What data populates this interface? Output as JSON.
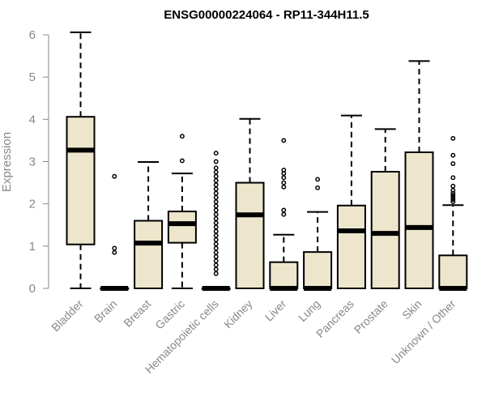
{
  "chart_data": {
    "type": "box",
    "title": "ENSG00000224064 - RP11-344H11.5",
    "ylabel": "Expression",
    "ylim": [
      0,
      6
    ],
    "yticks": [
      0,
      1,
      2,
      3,
      4,
      5,
      6
    ],
    "categories": [
      "Bladder",
      "Brain",
      "Breast",
      "Gastric",
      "Hematopoietic cells",
      "Kidney",
      "Liver",
      "Lung",
      "Pancreas",
      "Prostate",
      "Skin",
      "Unknown / Other"
    ],
    "box_color": "#ede6cc",
    "stroke_color": "#000000",
    "boxes": [
      {
        "whisker_low": 0,
        "q1": 1.04,
        "median": 3.27,
        "q3": 4.06,
        "whisker_high": 6.06,
        "outliers": []
      },
      {
        "whisker_low": 0,
        "q1": 0,
        "median": 0,
        "q3": 0,
        "whisker_high": 0,
        "outliers": [
          0.85,
          0.95,
          2.65
        ]
      },
      {
        "whisker_low": 0,
        "q1": 0,
        "median": 1.07,
        "q3": 1.6,
        "whisker_high": 2.99,
        "outliers": []
      },
      {
        "whisker_low": 0,
        "q1": 1.08,
        "median": 1.53,
        "q3": 1.82,
        "whisker_high": 2.72,
        "outliers": [
          3.02,
          3.6
        ]
      },
      {
        "whisker_low": 0,
        "q1": 0,
        "median": 0,
        "q3": 0,
        "whisker_high": 0,
        "outliers": [
          0.35,
          0.45,
          0.55,
          0.65,
          0.75,
          0.85,
          0.95,
          1.05,
          1.15,
          1.25,
          1.35,
          1.45,
          1.55,
          1.65,
          1.75,
          1.85,
          1.95,
          2.05,
          2.15,
          2.25,
          2.35,
          2.45,
          2.55,
          2.65,
          2.75,
          2.85,
          3.0,
          3.2
        ]
      },
      {
        "whisker_low": 0,
        "q1": 0,
        "median": 1.74,
        "q3": 2.5,
        "whisker_high": 4.01,
        "outliers": []
      },
      {
        "whisker_low": 0,
        "q1": 0,
        "median": 0,
        "q3": 0.62,
        "whisker_high": 1.27,
        "outliers": [
          1.75,
          1.85,
          2.4,
          2.5,
          2.62,
          2.72,
          2.8,
          3.5
        ]
      },
      {
        "whisker_low": 0,
        "q1": 0,
        "median": 0,
        "q3": 0.86,
        "whisker_high": 1.81,
        "outliers": [
          2.38,
          2.58
        ]
      },
      {
        "whisker_low": 0,
        "q1": 0,
        "median": 1.36,
        "q3": 1.96,
        "whisker_high": 4.09,
        "outliers": []
      },
      {
        "whisker_low": 0,
        "q1": 0,
        "median": 1.3,
        "q3": 2.76,
        "whisker_high": 3.77,
        "outliers": []
      },
      {
        "whisker_low": 0,
        "q1": 0,
        "median": 1.44,
        "q3": 3.22,
        "whisker_high": 5.38,
        "outliers": []
      },
      {
        "whisker_low": 0,
        "q1": 0,
        "median": 0,
        "q3": 0.78,
        "whisker_high": 1.97,
        "outliers": [
          2.05,
          2.1,
          2.15,
          2.2,
          2.25,
          2.32,
          2.42,
          2.62,
          2.95,
          3.15,
          3.55
        ]
      }
    ]
  }
}
